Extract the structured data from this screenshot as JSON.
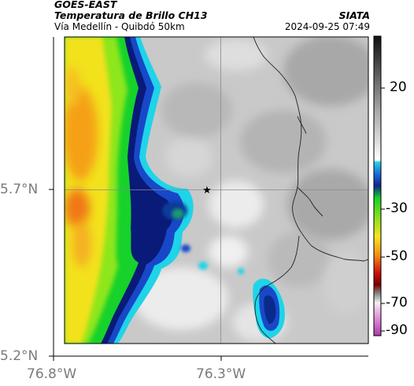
{
  "header": {
    "satellite": "GOES-EAST",
    "product": "Temperatura de Brillo CH13",
    "route": "Vía Medellín - Quibdó 50km",
    "agency": "SIATA",
    "timestamp": "2024-09-25 07:49"
  },
  "axes": {
    "x_ticks": [
      "76.8°W",
      "76.3°W"
    ],
    "y_ticks": [
      "5.7°N",
      "5.2°N"
    ]
  },
  "colorbar": {
    "ticks": [
      "20",
      "-30",
      "-50",
      "-70",
      "-90"
    ]
  },
  "map": {
    "marker_icon": "star-marker-icon",
    "colors": {
      "cloud_warm": "#f4f4f4",
      "cloud_grey": "#a9a9a9",
      "cyan": "#1fd4e8",
      "blue": "#1848c8",
      "navy": "#0a1a78",
      "green": "#16d22a",
      "yellow": "#f2e21c",
      "orange": "#f5a018"
    }
  }
}
